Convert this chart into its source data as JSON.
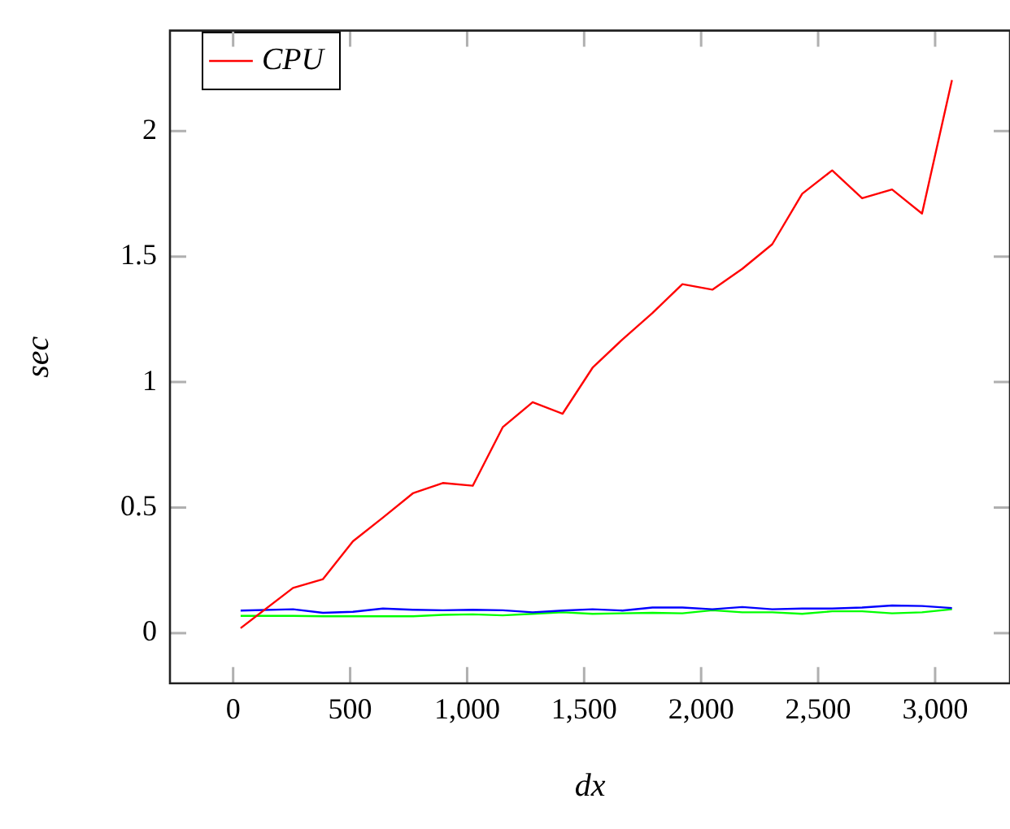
{
  "chart_data": {
    "type": "line",
    "xlabel": "dx",
    "ylabel": "sec",
    "x": [
      32,
      256,
      384,
      512,
      640,
      768,
      896,
      1024,
      1152,
      1280,
      1408,
      1536,
      1664,
      1792,
      1920,
      2048,
      2176,
      2304,
      2432,
      2560,
      2688,
      2816,
      2944,
      3072
    ],
    "series": [
      {
        "name": "CPU",
        "color": "#ff0000",
        "values": [
          0.02,
          0.18,
          0.215,
          0.366,
          0.46,
          0.557,
          0.598,
          0.587,
          0.82,
          0.92,
          0.874,
          1.057,
          1.17,
          1.275,
          1.39,
          1.368,
          1.451,
          1.549,
          1.75,
          1.843,
          1.732,
          1.767,
          1.671,
          2.203
        ]
      },
      {
        "color": "#0000ff",
        "values": [
          0.09,
          0.095,
          0.081,
          0.085,
          0.098,
          0.093,
          0.091,
          0.093,
          0.091,
          0.083,
          0.09,
          0.095,
          0.09,
          0.102,
          0.102,
          0.095,
          0.104,
          0.095,
          0.098,
          0.098,
          0.102,
          0.11,
          0.108,
          0.1
        ]
      },
      {
        "color": "#00ff00",
        "values": [
          0.069,
          0.069,
          0.067,
          0.067,
          0.067,
          0.067,
          0.073,
          0.075,
          0.071,
          0.077,
          0.083,
          0.077,
          0.079,
          0.081,
          0.079,
          0.091,
          0.083,
          0.083,
          0.077,
          0.087,
          0.087,
          0.079,
          0.083,
          0.095
        ]
      }
    ],
    "xlim": [
      -270,
      3320
    ],
    "xticks": [
      0,
      {
        "value": 500,
        "label": "500"
      },
      {
        "value": 1000,
        "label": "1,000"
      },
      {
        "value": 1500,
        "label": "1,500"
      },
      {
        "value": 2000,
        "label": "2,000"
      },
      {
        "value": 2500,
        "label": "2,500"
      },
      {
        "value": 3000,
        "label": "3,000"
      }
    ],
    "ylim": [
      -0.2,
      2.4
    ],
    "yticks": [
      0,
      0.5,
      1,
      1.5,
      2
    ],
    "grid": false,
    "legend": "top left",
    "marker": "none",
    "line_style": "solid"
  }
}
